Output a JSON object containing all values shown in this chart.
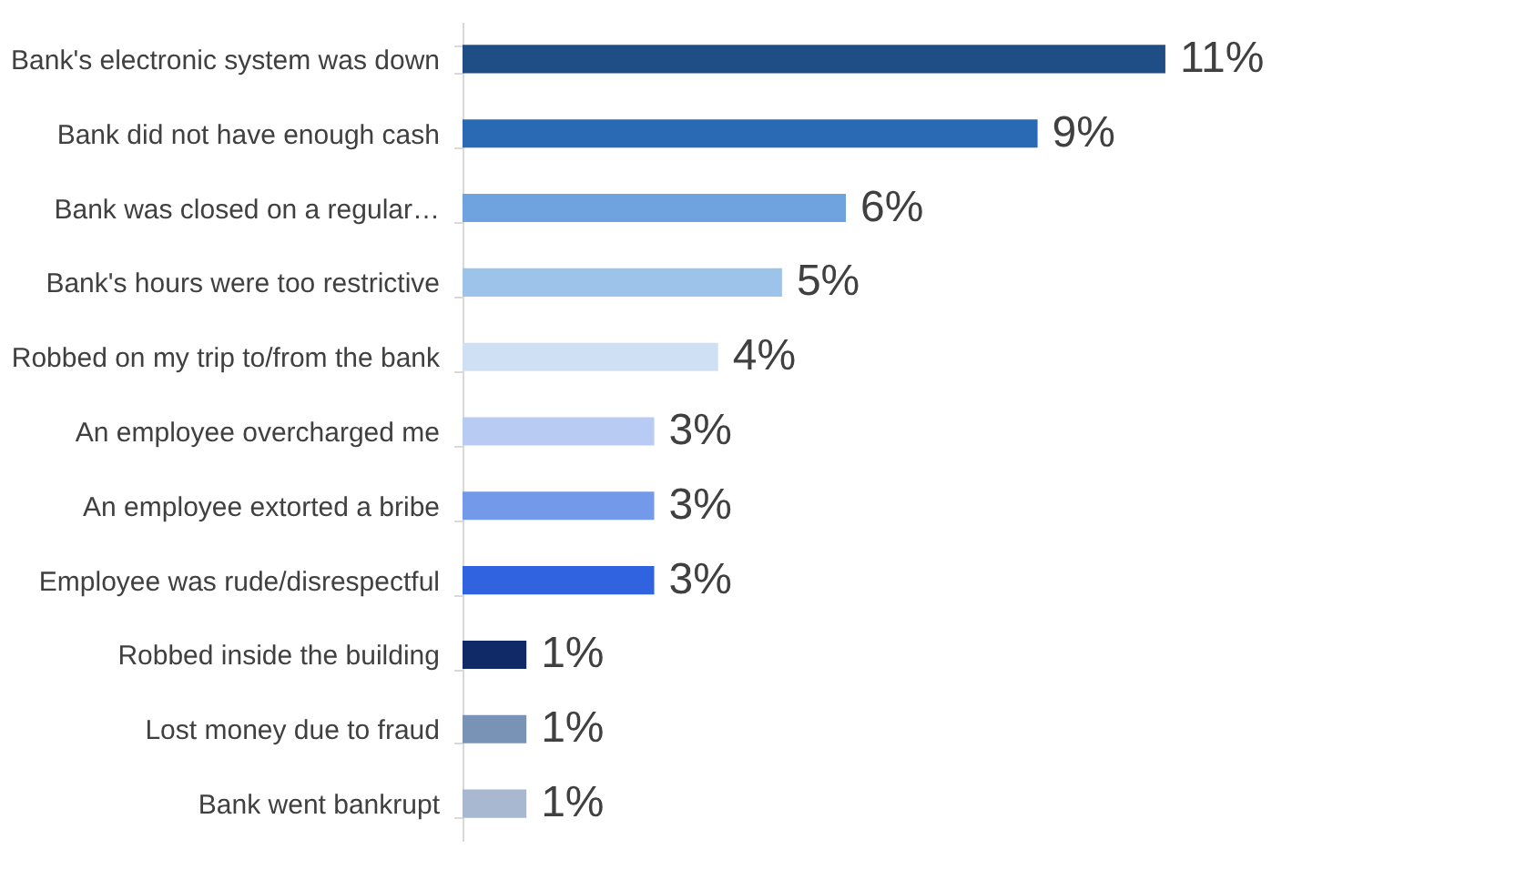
{
  "chart_data": {
    "type": "bar",
    "orientation": "horizontal",
    "value_labels": [
      "11%",
      "9%",
      "6%",
      "5%",
      "4%",
      "3%",
      "3%",
      "3%",
      "1%",
      "1%",
      "1%"
    ],
    "categories": [
      "Bank's electronic system was down",
      "Bank did not have enough cash",
      "Bank was closed on a regular…",
      "Bank's hours were too restrictive",
      "Robbed on my trip to/from the bank",
      "An employee overcharged me",
      "An employee extorted a bribe",
      "Employee was rude/disrespectful",
      "Robbed inside the building",
      "Lost money due to fraud",
      "Bank went bankrupt"
    ],
    "values": [
      11,
      9,
      6,
      5,
      4,
      3,
      3,
      3,
      1,
      1,
      1
    ],
    "colors": [
      "#1f4e86",
      "#2a6ab4",
      "#6fa3e0",
      "#9dc3ea",
      "#cfe0f4",
      "#b8ccf3",
      "#7399ea",
      "#2f63e0",
      "#0f2a66",
      "#7893b5",
      "#a8b8d0"
    ],
    "grid": false
  }
}
